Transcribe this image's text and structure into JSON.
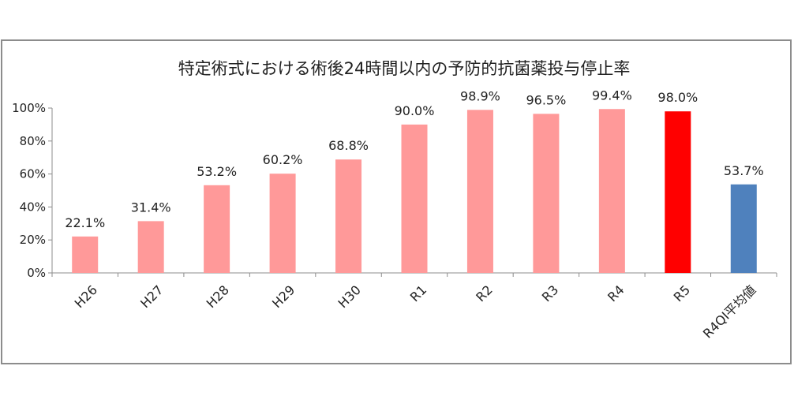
{
  "chart_data": {
    "type": "bar",
    "title": "特定術式における術後24時間以内の予防的抗菌薬投与停止率",
    "xlabel": "",
    "ylabel": "",
    "categories": [
      "H26",
      "H27",
      "H28",
      "H29",
      "H30",
      "R1",
      "R2",
      "R3",
      "R4",
      "R5",
      "R4QI平均値"
    ],
    "values": [
      22.1,
      31.4,
      53.2,
      60.2,
      68.8,
      90.0,
      98.9,
      96.5,
      99.4,
      98.0,
      53.7
    ],
    "value_labels": [
      "22.1%",
      "31.4%",
      "53.2%",
      "60.2%",
      "68.8%",
      "90.0%",
      "98.9%",
      "96.5%",
      "99.4%",
      "98.0%",
      "53.7%"
    ],
    "bar_colors": [
      "#ff9999",
      "#ff9999",
      "#ff9999",
      "#ff9999",
      "#ff9999",
      "#ff9999",
      "#ff9999",
      "#ff9999",
      "#ff9999",
      "#ff0000",
      "#4f81bd"
    ],
    "ylim": [
      0,
      100
    ],
    "yticks": [
      0,
      20,
      40,
      60,
      80,
      100
    ],
    "ytick_labels": [
      "0%",
      "20%",
      "40%",
      "60%",
      "80%",
      "100%"
    ],
    "grid": false,
    "legend": "none"
  }
}
